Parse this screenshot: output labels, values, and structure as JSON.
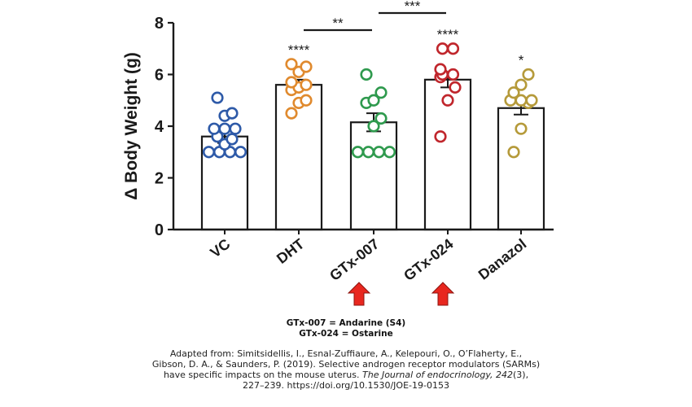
{
  "chart_data": {
    "type": "bar",
    "ylabel": "Δ Body Weight (g)",
    "ylim": [
      0,
      8
    ],
    "yticks": [
      0,
      2,
      4,
      6,
      8
    ],
    "categories": [
      "VC",
      "DHT",
      "GTx-007",
      "GTx-024",
      "Danazol"
    ],
    "means": [
      3.6,
      5.6,
      4.15,
      5.8,
      4.7
    ],
    "sem": [
      0.25,
      0.2,
      0.35,
      0.3,
      0.25
    ],
    "significance": [
      "",
      "****",
      "",
      "****",
      "*"
    ],
    "colors": [
      "#2e5aa8",
      "#e08a2e",
      "#2f9a4e",
      "#c0262c",
      "#b59a3a"
    ],
    "points": [
      [
        3.0,
        3.0,
        3.0,
        3.0,
        3.3,
        3.5,
        3.6,
        3.9,
        3.9,
        3.9,
        4.4,
        4.5,
        5.1
      ],
      [
        4.5,
        4.9,
        5.0,
        5.4,
        5.5,
        5.6,
        5.7,
        6.1,
        6.3,
        6.4
      ],
      [
        3.0,
        3.0,
        3.0,
        3.0,
        4.0,
        4.3,
        4.9,
        5.0,
        5.3,
        6.0
      ],
      [
        3.6,
        5.0,
        5.5,
        5.9,
        6.0,
        6.0,
        6.2,
        7.0,
        7.0
      ],
      [
        3.0,
        3.9,
        4.9,
        5.0,
        5.0,
        5.0,
        5.3,
        5.6,
        6.0
      ]
    ],
    "brackets": [
      {
        "from": 1,
        "to": 2,
        "label": "**"
      },
      {
        "from": 2,
        "to": 3,
        "label": "***"
      }
    ],
    "highlighted": [
      2,
      3
    ]
  },
  "annotation": {
    "line1": "GTx-007 = Andarine (S4)",
    "line2": "GTx-024 = Ostarine"
  },
  "citation": {
    "line1": "Adapted from: Simitsidellis, I., Esnal-Zuffiaure, A., Kelepouri, O., O’Flaherty, E.,",
    "line2": "Gibson, D. A., & Saunders, P. (2019). Selective androgen receptor modulators (SARMs)",
    "line3_pre": "have specific impacts on the mouse uterus. ",
    "line3_journal": "The Journal of endocrinology, 242",
    "line3_post": "(3),",
    "line4": "227–239. https://doi.org/10.1530/JOE-19-0153"
  },
  "arrow_color": "#e8271f"
}
